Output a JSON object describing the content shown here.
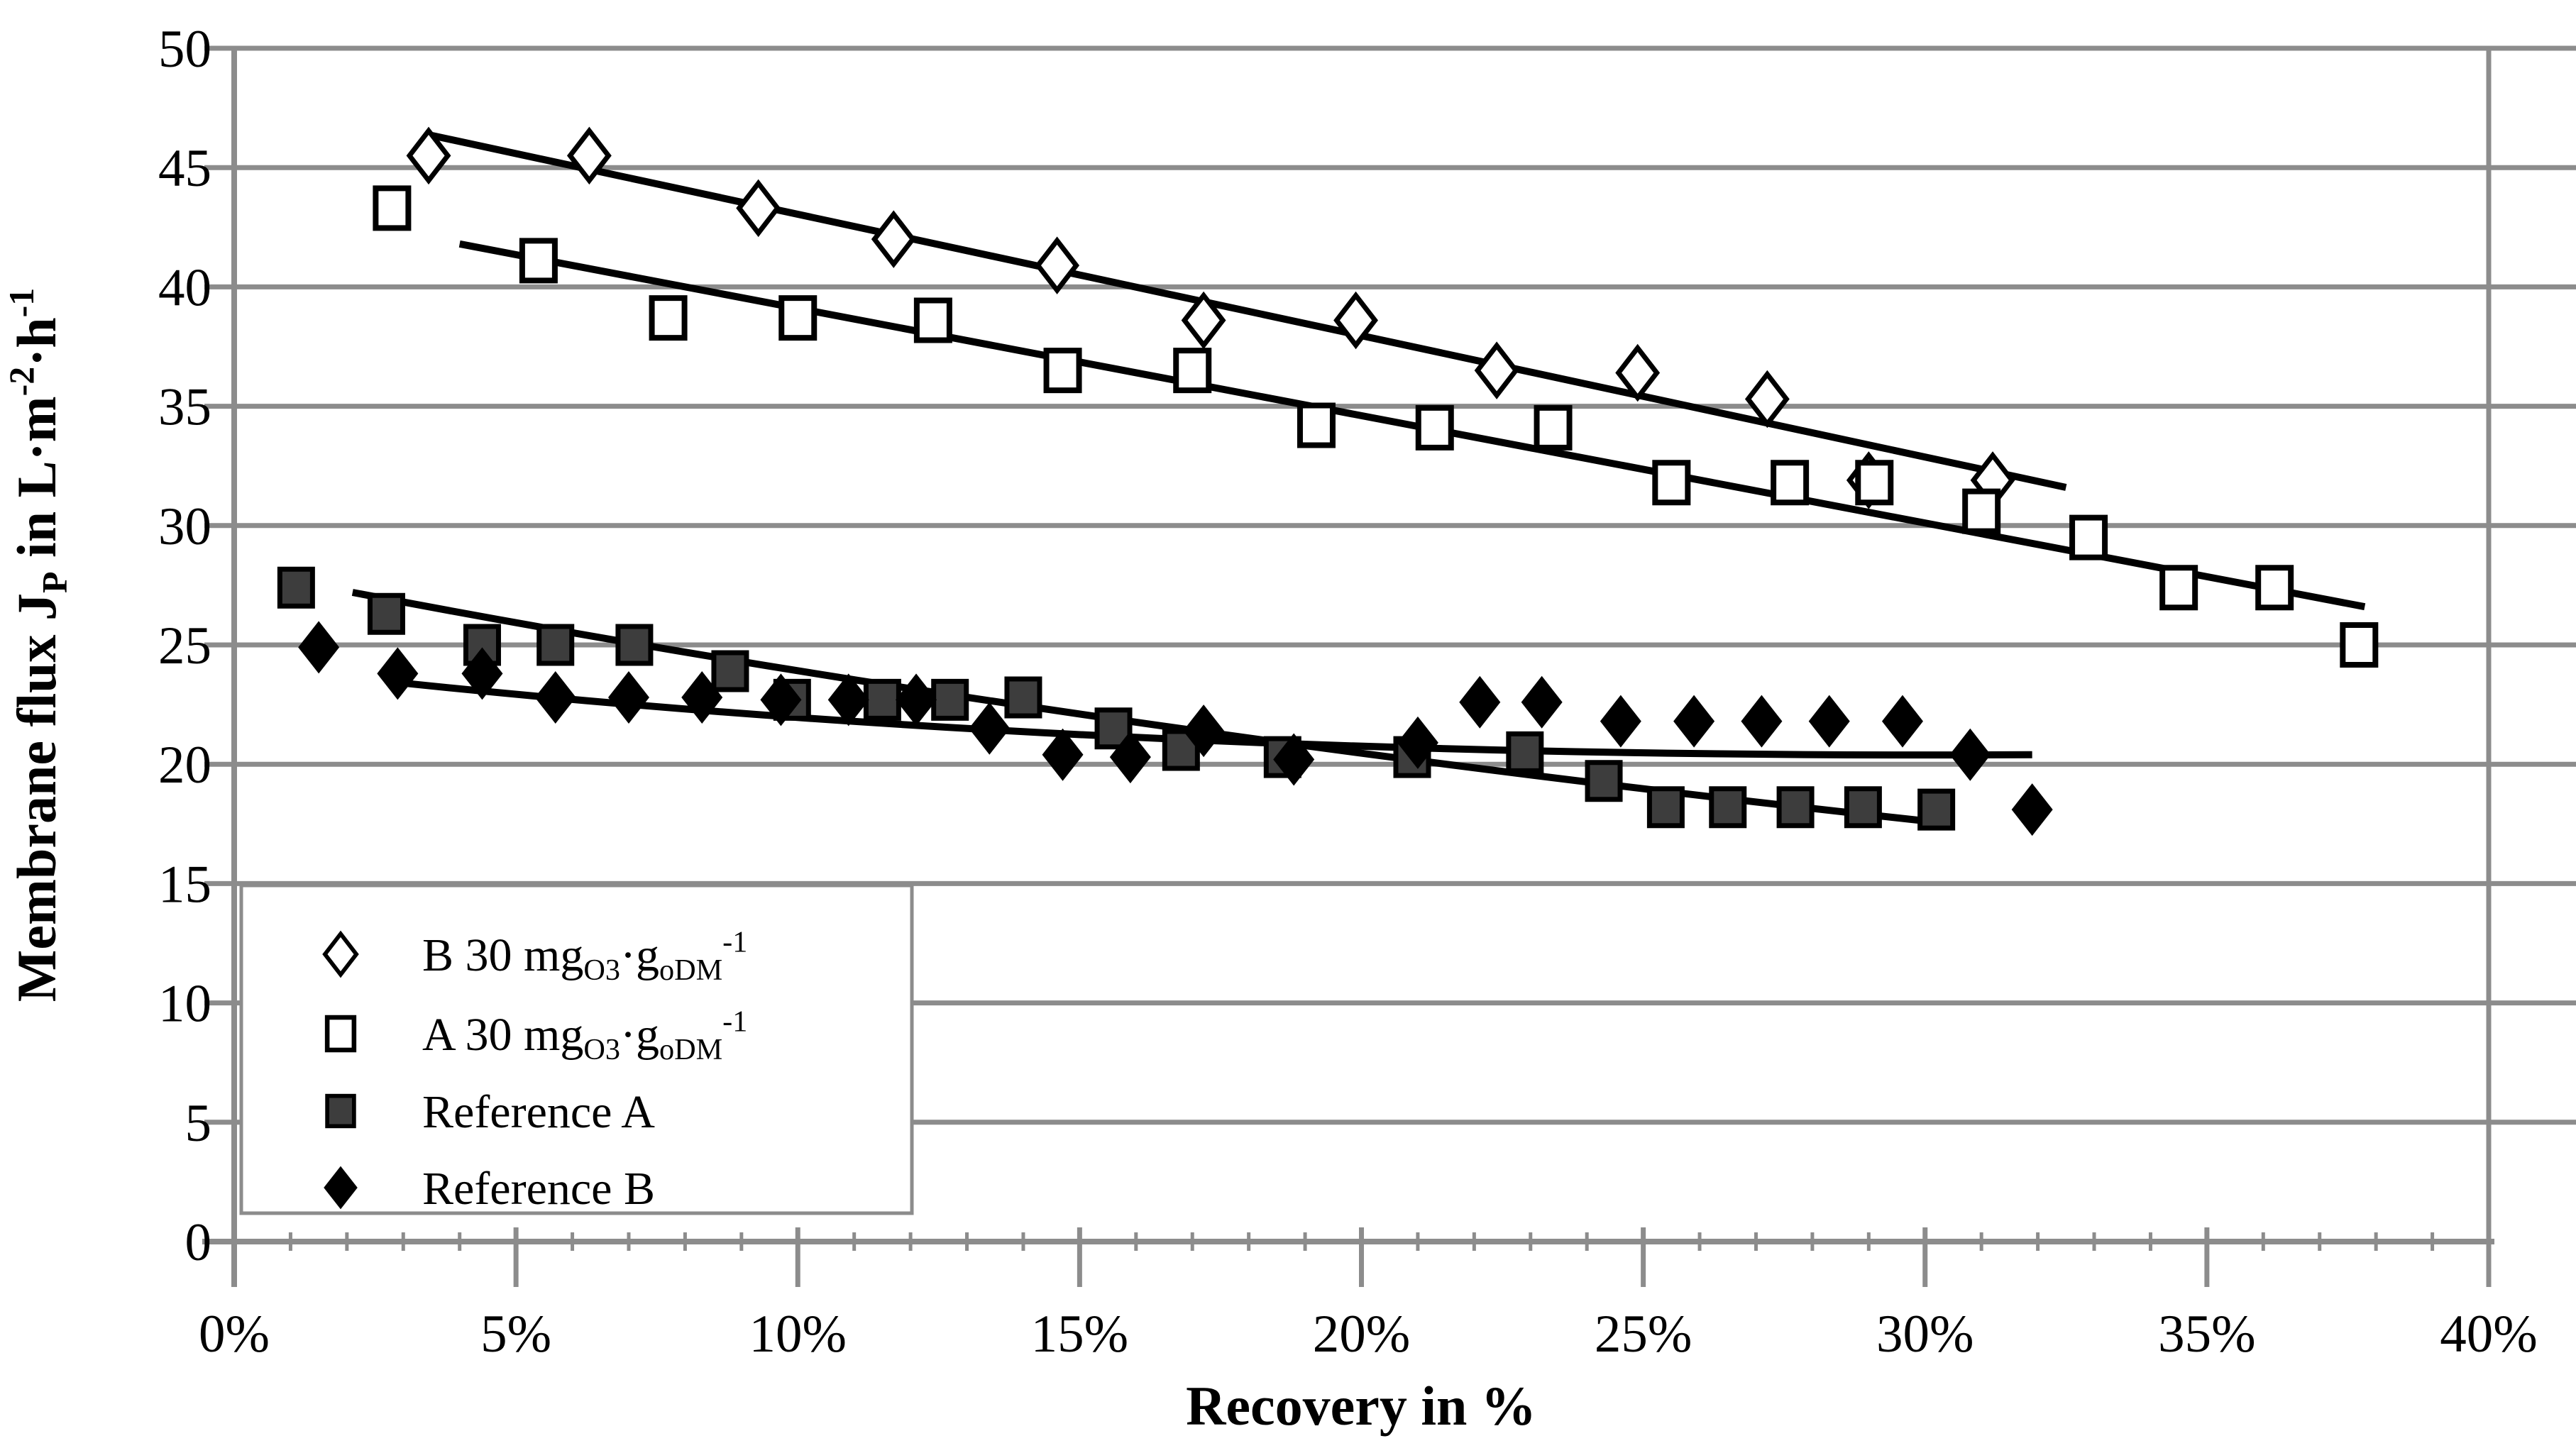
{
  "chart_data": {
    "type": "scatter",
    "title": "",
    "xlabel": "Recovery in %",
    "ylabel_segments": [
      {
        "t": "Membrane flux J"
      },
      {
        "t": "P",
        "sub": true
      },
      {
        "t": " in L·m"
      },
      {
        "t": "-2",
        "sup": true
      },
      {
        "t": "·h"
      },
      {
        "t": "-1",
        "sup": true
      }
    ],
    "xlim": [
      0,
      40
    ],
    "ylim": [
      0,
      50
    ],
    "x_major_step": 5,
    "x_minor_step": 1,
    "y_major_step": 5,
    "x_tick_labels": [
      "0%",
      "5%",
      "10%",
      "15%",
      "20%",
      "25%",
      "30%",
      "35%",
      "40%"
    ],
    "x_tick_values": [
      0,
      5,
      10,
      15,
      20,
      25,
      30,
      35,
      40
    ],
    "y_tick_labels": [
      "0",
      "5",
      "10",
      "15",
      "20",
      "25",
      "30",
      "35",
      "40",
      "45",
      "50"
    ],
    "y_tick_values": [
      0,
      5,
      10,
      15,
      20,
      25,
      30,
      35,
      40,
      45,
      50
    ],
    "grid": true,
    "grid_color": "#8c8c8c",
    "axis_color": "#8c8c8c",
    "marker_line_color": "#000000",
    "background_color": "#ffffff",
    "legend_position": "bottom-left",
    "series": [
      {
        "name": "B 30 mgO3·goDM-1",
        "name_segments": [
          {
            "t": "B 30 mg"
          },
          {
            "t": "O3",
            "sub": true
          },
          {
            "t": "·g"
          },
          {
            "t": "oDM",
            "sub": true
          },
          {
            "t": "-1",
            "sup": true
          }
        ],
        "marker": "open-diamond",
        "fill": "#ffffff",
        "stroke": "#000000",
        "points": [
          [
            3.45,
            45.5
          ],
          [
            6.3,
            45.5
          ],
          [
            9.3,
            43.3
          ],
          [
            11.7,
            42.0
          ],
          [
            14.6,
            40.9
          ],
          [
            17.2,
            38.6
          ],
          [
            19.9,
            38.6
          ],
          [
            22.4,
            36.5
          ],
          [
            24.9,
            36.4
          ],
          [
            27.2,
            35.3
          ],
          [
            29.0,
            31.9
          ],
          [
            31.2,
            31.9
          ]
        ],
        "trend": {
          "type": "linear",
          "from": [
            3.4,
            46.4
          ],
          "to": [
            32.5,
            31.6
          ]
        }
      },
      {
        "name": "A 30 mgO3·goDM-1",
        "name_segments": [
          {
            "t": "A 30 mg"
          },
          {
            "t": "O3",
            "sub": true
          },
          {
            "t": "·g"
          },
          {
            "t": "oDM",
            "sub": true
          },
          {
            "t": "-1",
            "sup": true
          }
        ],
        "marker": "open-square",
        "fill": "#ffffff",
        "stroke": "#000000",
        "points": [
          [
            2.8,
            43.3
          ],
          [
            5.4,
            41.1
          ],
          [
            7.7,
            38.7
          ],
          [
            10.0,
            38.7
          ],
          [
            12.4,
            38.6
          ],
          [
            14.7,
            36.5
          ],
          [
            17.0,
            36.5
          ],
          [
            19.2,
            34.2
          ],
          [
            21.3,
            34.1
          ],
          [
            23.4,
            34.1
          ],
          [
            25.5,
            31.8
          ],
          [
            27.6,
            31.8
          ],
          [
            29.1,
            31.8
          ],
          [
            31.0,
            30.6
          ],
          [
            32.9,
            29.5
          ],
          [
            34.5,
            27.4
          ],
          [
            36.2,
            27.4
          ],
          [
            37.7,
            25.0
          ]
        ],
        "trend": {
          "type": "linear",
          "from": [
            4.0,
            41.8
          ],
          "to": [
            37.8,
            26.6
          ]
        }
      },
      {
        "name": "Reference A",
        "name_segments": [
          {
            "t": "Reference A"
          }
        ],
        "marker": "filled-square",
        "fill": "#3d3d3d",
        "stroke": "#000000",
        "points": [
          [
            1.1,
            27.4
          ],
          [
            2.7,
            26.3
          ],
          [
            4.4,
            25.0
          ],
          [
            5.7,
            25.0
          ],
          [
            7.1,
            25.0
          ],
          [
            8.8,
            23.9
          ],
          [
            9.9,
            22.7
          ],
          [
            11.5,
            22.7
          ],
          [
            12.7,
            22.7
          ],
          [
            14.0,
            22.8
          ],
          [
            15.6,
            21.5
          ],
          [
            16.8,
            20.6
          ],
          [
            18.6,
            20.3
          ],
          [
            20.9,
            20.3
          ],
          [
            22.9,
            20.5
          ],
          [
            24.3,
            19.3
          ],
          [
            25.4,
            18.2
          ],
          [
            26.5,
            18.2
          ],
          [
            27.7,
            18.2
          ],
          [
            28.9,
            18.2
          ],
          [
            30.2,
            18.1
          ]
        ],
        "trend": {
          "type": "quadratic",
          "from": [
            2.1,
            27.2
          ],
          "ctrl": [
            14.5,
            21.6
          ],
          "to": [
            30.1,
            17.6
          ]
        }
      },
      {
        "name": "Reference B",
        "name_segments": [
          {
            "t": "Reference B"
          }
        ],
        "marker": "filled-diamond",
        "fill": "#000000",
        "stroke": "#000000",
        "points": [
          [
            1.5,
            24.9
          ],
          [
            2.9,
            23.8
          ],
          [
            4.4,
            23.8
          ],
          [
            5.7,
            22.8
          ],
          [
            7.0,
            22.8
          ],
          [
            8.3,
            22.8
          ],
          [
            9.7,
            22.7
          ],
          [
            10.9,
            22.7
          ],
          [
            12.1,
            22.7
          ],
          [
            13.4,
            21.5
          ],
          [
            14.7,
            20.4
          ],
          [
            15.9,
            20.3
          ],
          [
            17.2,
            21.4
          ],
          [
            18.8,
            20.2
          ],
          [
            21.0,
            20.9
          ],
          [
            22.1,
            22.6
          ],
          [
            23.2,
            22.6
          ],
          [
            24.6,
            21.8
          ],
          [
            25.9,
            21.8
          ],
          [
            27.1,
            21.8
          ],
          [
            28.3,
            21.8
          ],
          [
            29.6,
            21.8
          ],
          [
            30.8,
            20.4
          ],
          [
            31.9,
            18.1
          ]
        ],
        "trend": {
          "type": "quadratic",
          "from": [
            3.0,
            23.4
          ],
          "ctrl": [
            16.0,
            20.2
          ],
          "to": [
            31.9,
            20.4
          ]
        }
      }
    ]
  }
}
